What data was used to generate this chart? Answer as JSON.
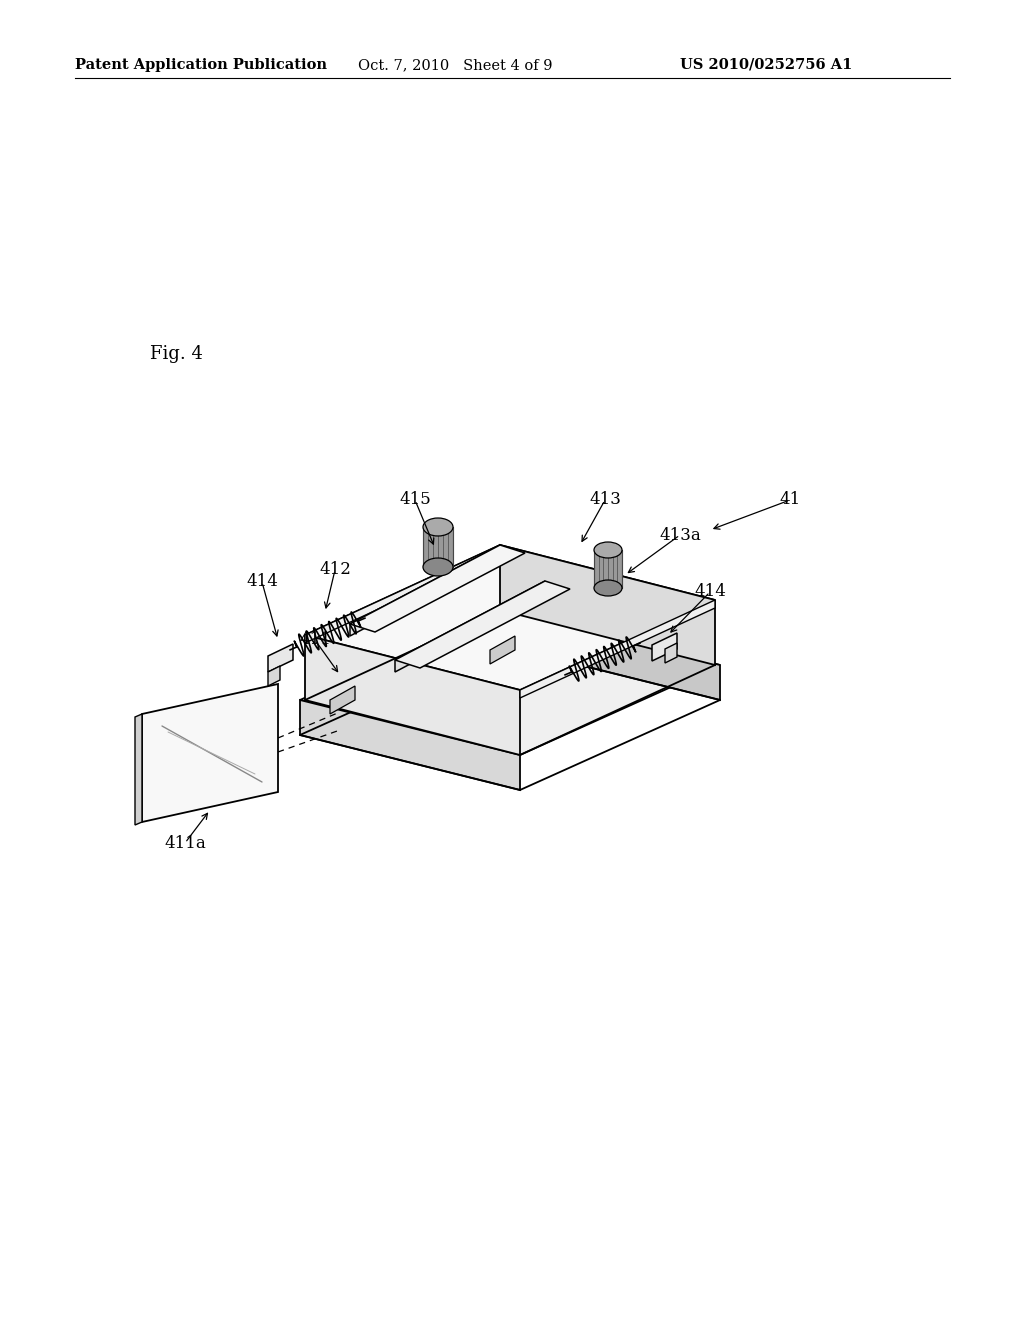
{
  "background_color": "#ffffff",
  "header_left": "Patent Application Publication",
  "header_center": "Oct. 7, 2010   Sheet 4 of 9",
  "header_right": "US 2010/0252756 A1",
  "fig_label": "Fig. 4",
  "header_fontsize": 10.5,
  "fig_label_fontsize": 13,
  "label_fontsize": 12
}
